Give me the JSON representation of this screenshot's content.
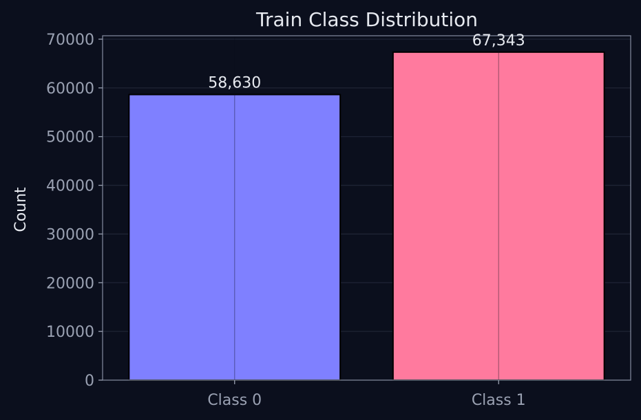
{
  "chart_data": {
    "type": "bar",
    "title": "Train Class Distribution",
    "xlabel": "",
    "ylabel": "Count",
    "categories": [
      "Class 0",
      "Class 1"
    ],
    "values": [
      58630,
      67343
    ],
    "value_labels": [
      "58,630",
      "67,343"
    ],
    "colors": [
      "#7f80ff",
      "#ff7a9e"
    ],
    "ylim": [
      0,
      70000
    ],
    "yticks": [
      0,
      10000,
      20000,
      30000,
      40000,
      50000,
      60000,
      70000
    ],
    "grid": true,
    "legend": "none"
  }
}
